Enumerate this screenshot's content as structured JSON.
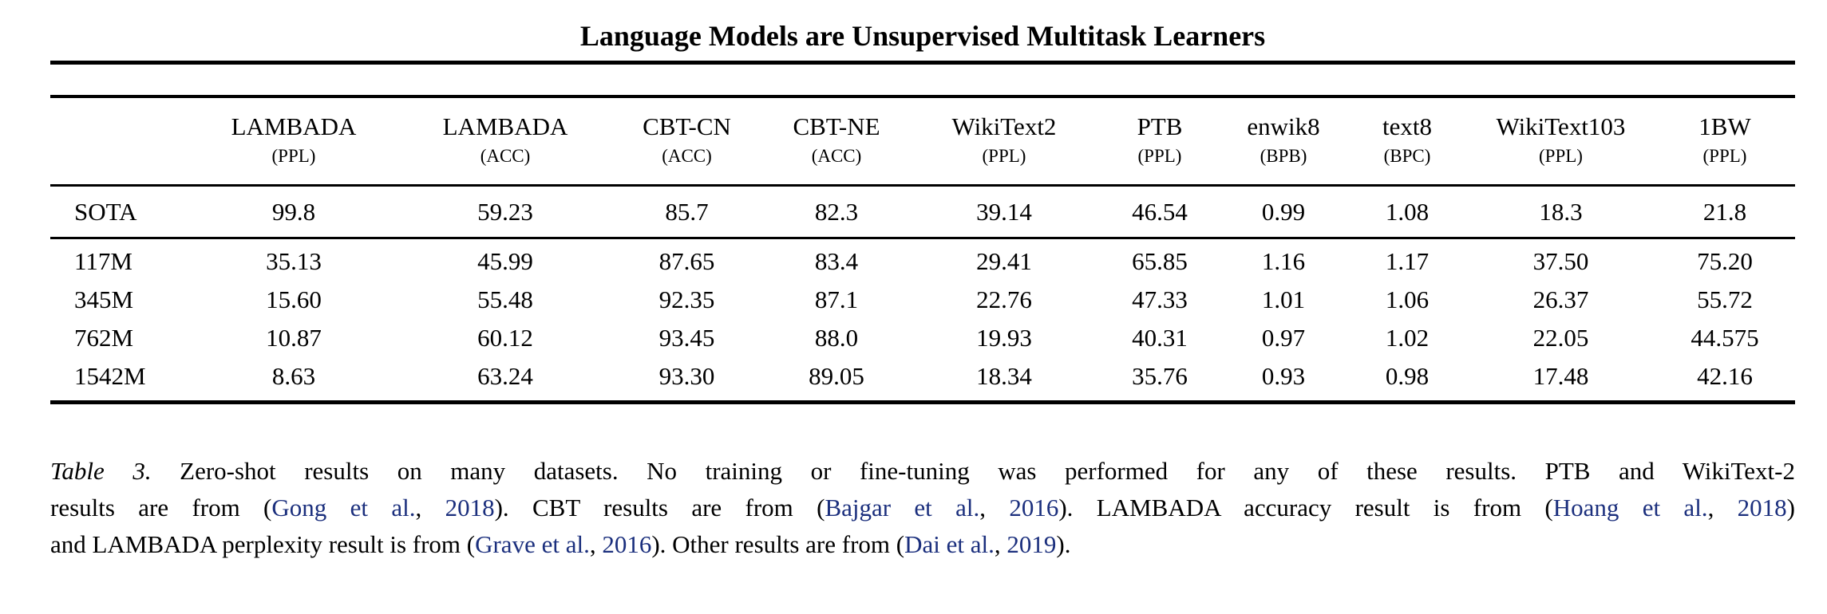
{
  "page": {
    "title": "Language Models are Unsupervised Multitask Learners"
  },
  "colors": {
    "text": "#000000",
    "background": "#ffffff",
    "rule": "#000000",
    "citation_link": "#1b2f7d"
  },
  "table": {
    "columns": [
      {
        "name": "",
        "metric": ""
      },
      {
        "name": "LAMBADA",
        "metric": "(PPL)"
      },
      {
        "name": "LAMBADA",
        "metric": "(ACC)"
      },
      {
        "name": "CBT-CN",
        "metric": "(ACC)"
      },
      {
        "name": "CBT-NE",
        "metric": "(ACC)"
      },
      {
        "name": "WikiText2",
        "metric": "(PPL)"
      },
      {
        "name": "PTB",
        "metric": "(PPL)"
      },
      {
        "name": "enwik8",
        "metric": "(BPB)"
      },
      {
        "name": "text8",
        "metric": "(BPC)"
      },
      {
        "name": "WikiText103",
        "metric": "(PPL)"
      },
      {
        "name": "1BW",
        "metric": "(PPL)"
      }
    ],
    "sota_row": {
      "label": "SOTA",
      "cells": [
        {
          "v": "99.8",
          "b": false
        },
        {
          "v": "59.23",
          "b": false
        },
        {
          "v": "85.7",
          "b": false
        },
        {
          "v": "82.3",
          "b": false
        },
        {
          "v": "39.14",
          "b": false
        },
        {
          "v": "46.54",
          "b": false
        },
        {
          "v": "0.99",
          "b": false
        },
        {
          "v": "1.08",
          "b": false
        },
        {
          "v": "18.3",
          "b": false
        },
        {
          "v": "21.8",
          "b": true
        }
      ]
    },
    "model_rows": [
      {
        "label": "117M",
        "cells": [
          {
            "v": "35.13",
            "b": true
          },
          {
            "v": "45.99",
            "b": false
          },
          {
            "v": "87.65",
            "b": true
          },
          {
            "v": "83.4",
            "b": true
          },
          {
            "v": "29.41",
            "b": true
          },
          {
            "v": "65.85",
            "b": false
          },
          {
            "v": "1.16",
            "b": false
          },
          {
            "v": "1.17",
            "b": false
          },
          {
            "v": "37.50",
            "b": false
          },
          {
            "v": "75.20",
            "b": false
          }
        ]
      },
      {
        "label": "345M",
        "cells": [
          {
            "v": "15.60",
            "b": true
          },
          {
            "v": "55.48",
            "b": false
          },
          {
            "v": "92.35",
            "b": true
          },
          {
            "v": "87.1",
            "b": true
          },
          {
            "v": "22.76",
            "b": true
          },
          {
            "v": "47.33",
            "b": false
          },
          {
            "v": "1.01",
            "b": false
          },
          {
            "v": "1.06",
            "b": true
          },
          {
            "v": "26.37",
            "b": false
          },
          {
            "v": "55.72",
            "b": false
          }
        ]
      },
      {
        "label": "762M",
        "cells": [
          {
            "v": "10.87",
            "b": true
          },
          {
            "v": "60.12",
            "b": true
          },
          {
            "v": "93.45",
            "b": true
          },
          {
            "v": "88.0",
            "b": true
          },
          {
            "v": "19.93",
            "b": true
          },
          {
            "v": "40.31",
            "b": true
          },
          {
            "v": "0.97",
            "b": true
          },
          {
            "v": "1.02",
            "b": true
          },
          {
            "v": "22.05",
            "b": false
          },
          {
            "v": "44.575",
            "b": false
          }
        ]
      },
      {
        "label": "1542M",
        "cells": [
          {
            "v": "8.63",
            "b": true
          },
          {
            "v": "63.24",
            "b": true
          },
          {
            "v": "93.30",
            "b": true
          },
          {
            "v": "89.05",
            "b": true
          },
          {
            "v": "18.34",
            "b": true
          },
          {
            "v": "35.76",
            "b": true
          },
          {
            "v": "0.93",
            "b": true
          },
          {
            "v": "0.98",
            "b": true
          },
          {
            "v": "17.48",
            "b": true
          },
          {
            "v": "42.16",
            "b": false
          }
        ]
      }
    ]
  },
  "caption": {
    "lines": [
      [
        {
          "text": "Table 3.",
          "style": "italic"
        },
        {
          "text": " Zero-shot results on many datasets. No training or fine-tuning was performed for any of these results. PTB and WikiText-2",
          "style": "normal"
        }
      ],
      [
        {
          "text": "results are from (",
          "style": "normal"
        },
        {
          "text": "Gong et al.",
          "style": "link"
        },
        {
          "text": ", ",
          "style": "normal"
        },
        {
          "text": "2018",
          "style": "link"
        },
        {
          "text": "). CBT results are from (",
          "style": "normal"
        },
        {
          "text": "Bajgar et al.",
          "style": "link"
        },
        {
          "text": ", ",
          "style": "normal"
        },
        {
          "text": "2016",
          "style": "link"
        },
        {
          "text": "). LAMBADA accuracy result is from (",
          "style": "normal"
        },
        {
          "text": "Hoang et al.",
          "style": "link"
        },
        {
          "text": ", ",
          "style": "normal"
        },
        {
          "text": "2018",
          "style": "link"
        },
        {
          "text": ")",
          "style": "normal"
        }
      ],
      [
        {
          "text": "and LAMBADA perplexity result is from (",
          "style": "normal"
        },
        {
          "text": "Grave et al.",
          "style": "link"
        },
        {
          "text": ", ",
          "style": "normal"
        },
        {
          "text": "2016",
          "style": "link"
        },
        {
          "text": "). Other results are from (",
          "style": "normal"
        },
        {
          "text": "Dai et al.",
          "style": "link"
        },
        {
          "text": ", ",
          "style": "normal"
        },
        {
          "text": "2019",
          "style": "link"
        },
        {
          "text": ").",
          "style": "normal"
        }
      ]
    ]
  },
  "chart_data": {
    "type": "table",
    "title": "Language Models are Unsupervised Multitask Learners",
    "columns": [
      "LAMBADA (PPL)",
      "LAMBADA (ACC)",
      "CBT-CN (ACC)",
      "CBT-NE (ACC)",
      "WikiText2 (PPL)",
      "PTB (PPL)",
      "enwik8 (BPB)",
      "text8 (BPC)",
      "WikiText103 (PPL)",
      "1BW (PPL)"
    ],
    "rows": [
      {
        "label": "SOTA",
        "values": [
          99.8,
          59.23,
          85.7,
          82.3,
          39.14,
          46.54,
          0.99,
          1.08,
          18.3,
          21.8
        ]
      },
      {
        "label": "117M",
        "values": [
          35.13,
          45.99,
          87.65,
          83.4,
          29.41,
          65.85,
          1.16,
          1.17,
          37.5,
          75.2
        ]
      },
      {
        "label": "345M",
        "values": [
          15.6,
          55.48,
          92.35,
          87.1,
          22.76,
          47.33,
          1.01,
          1.06,
          26.37,
          55.72
        ]
      },
      {
        "label": "762M",
        "values": [
          10.87,
          60.12,
          93.45,
          88.0,
          19.93,
          40.31,
          0.97,
          1.02,
          22.05,
          44.575
        ]
      },
      {
        "label": "1542M",
        "values": [
          8.63,
          63.24,
          93.3,
          89.05,
          18.34,
          35.76,
          0.93,
          0.98,
          17.48,
          42.16
        ]
      }
    ]
  }
}
